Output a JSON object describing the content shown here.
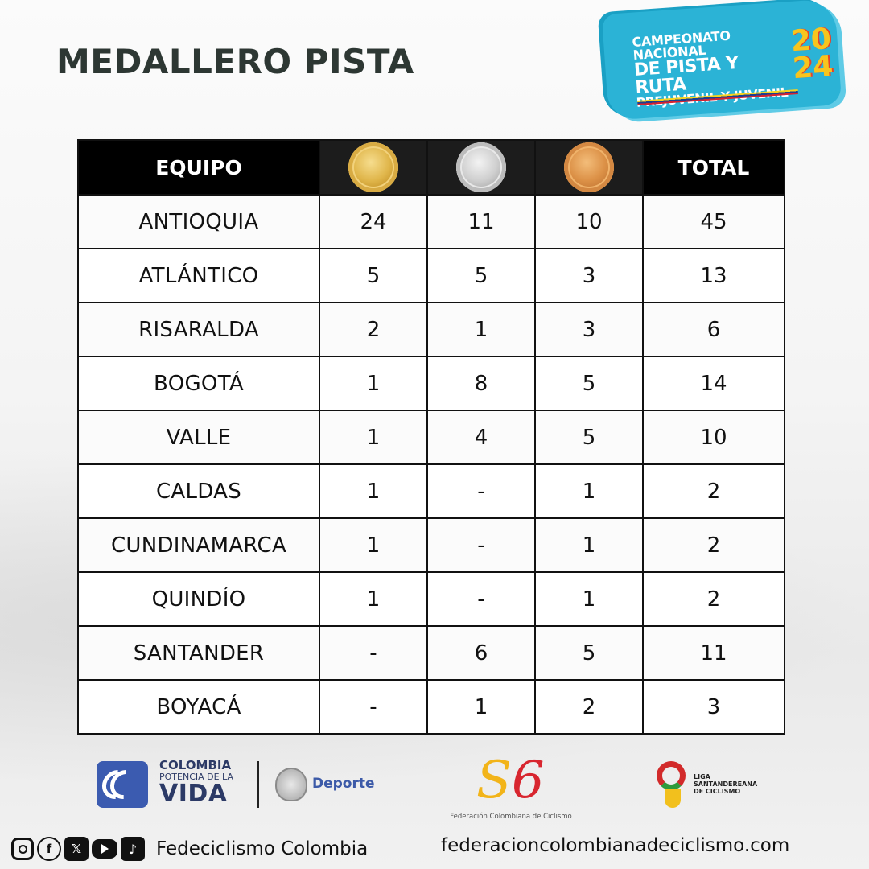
{
  "title": "MEDALLERO PISTA",
  "event_logo": {
    "line1": "CAMPEONATO NACIONAL",
    "line2": "DE PISTA Y RUTA",
    "line3": "PREJUVENIL Y JUVENIL",
    "year_top": "20",
    "year_bottom": "24"
  },
  "table": {
    "headers": {
      "team": "EQUIPO",
      "gold": "gold-medal-icon",
      "silver": "silver-medal-icon",
      "bronze": "bronze-medal-icon",
      "total": "TOTAL"
    },
    "rows": [
      {
        "team": "ANTIOQUIA",
        "gold": "24",
        "silver": "11",
        "bronze": "10",
        "total": "45"
      },
      {
        "team": "ATLÁNTICO",
        "gold": "5",
        "silver": "5",
        "bronze": "3",
        "total": "13"
      },
      {
        "team": "RISARALDA",
        "gold": "2",
        "silver": "1",
        "bronze": "3",
        "total": "6"
      },
      {
        "team": "BOGOTÁ",
        "gold": "1",
        "silver": "8",
        "bronze": "5",
        "total": "14"
      },
      {
        "team": "VALLE",
        "gold": "1",
        "silver": "4",
        "bronze": "5",
        "total": "10"
      },
      {
        "team": "CALDAS",
        "gold": "1",
        "silver": "-",
        "bronze": "1",
        "total": "2"
      },
      {
        "team": "CUNDINAMARCA",
        "gold": "1",
        "silver": "-",
        "bronze": "1",
        "total": "2"
      },
      {
        "team": "QUINDÍO",
        "gold": "1",
        "silver": "-",
        "bronze": "1",
        "total": "2"
      },
      {
        "team": "SANTANDER",
        "gold": "-",
        "silver": "6",
        "bronze": "5",
        "total": "11"
      },
      {
        "team": "BOYACÁ",
        "gold": "-",
        "silver": "1",
        "bronze": "2",
        "total": "3"
      }
    ]
  },
  "footer": {
    "colombia": {
      "line1": "COLOMBIA",
      "line2": "POTENCIA DE LA",
      "line3": "VIDA"
    },
    "deporte": "Deporte",
    "federation_caption": "Federación Colombiana de Ciclismo",
    "liga": {
      "line1": "LIGA",
      "line2": "SANTANDEREANA",
      "line3": "DE CICLISMO"
    },
    "social_handle": "Fedeciclismo Colombia",
    "website": "federacioncolombianadeciclismo.com"
  },
  "colors": {
    "header_bg": "#000000",
    "gold": "#e0b64b",
    "silver": "#cfcfcf",
    "bronze": "#dc9147",
    "event_logo_bg": "#2bb3d6"
  }
}
